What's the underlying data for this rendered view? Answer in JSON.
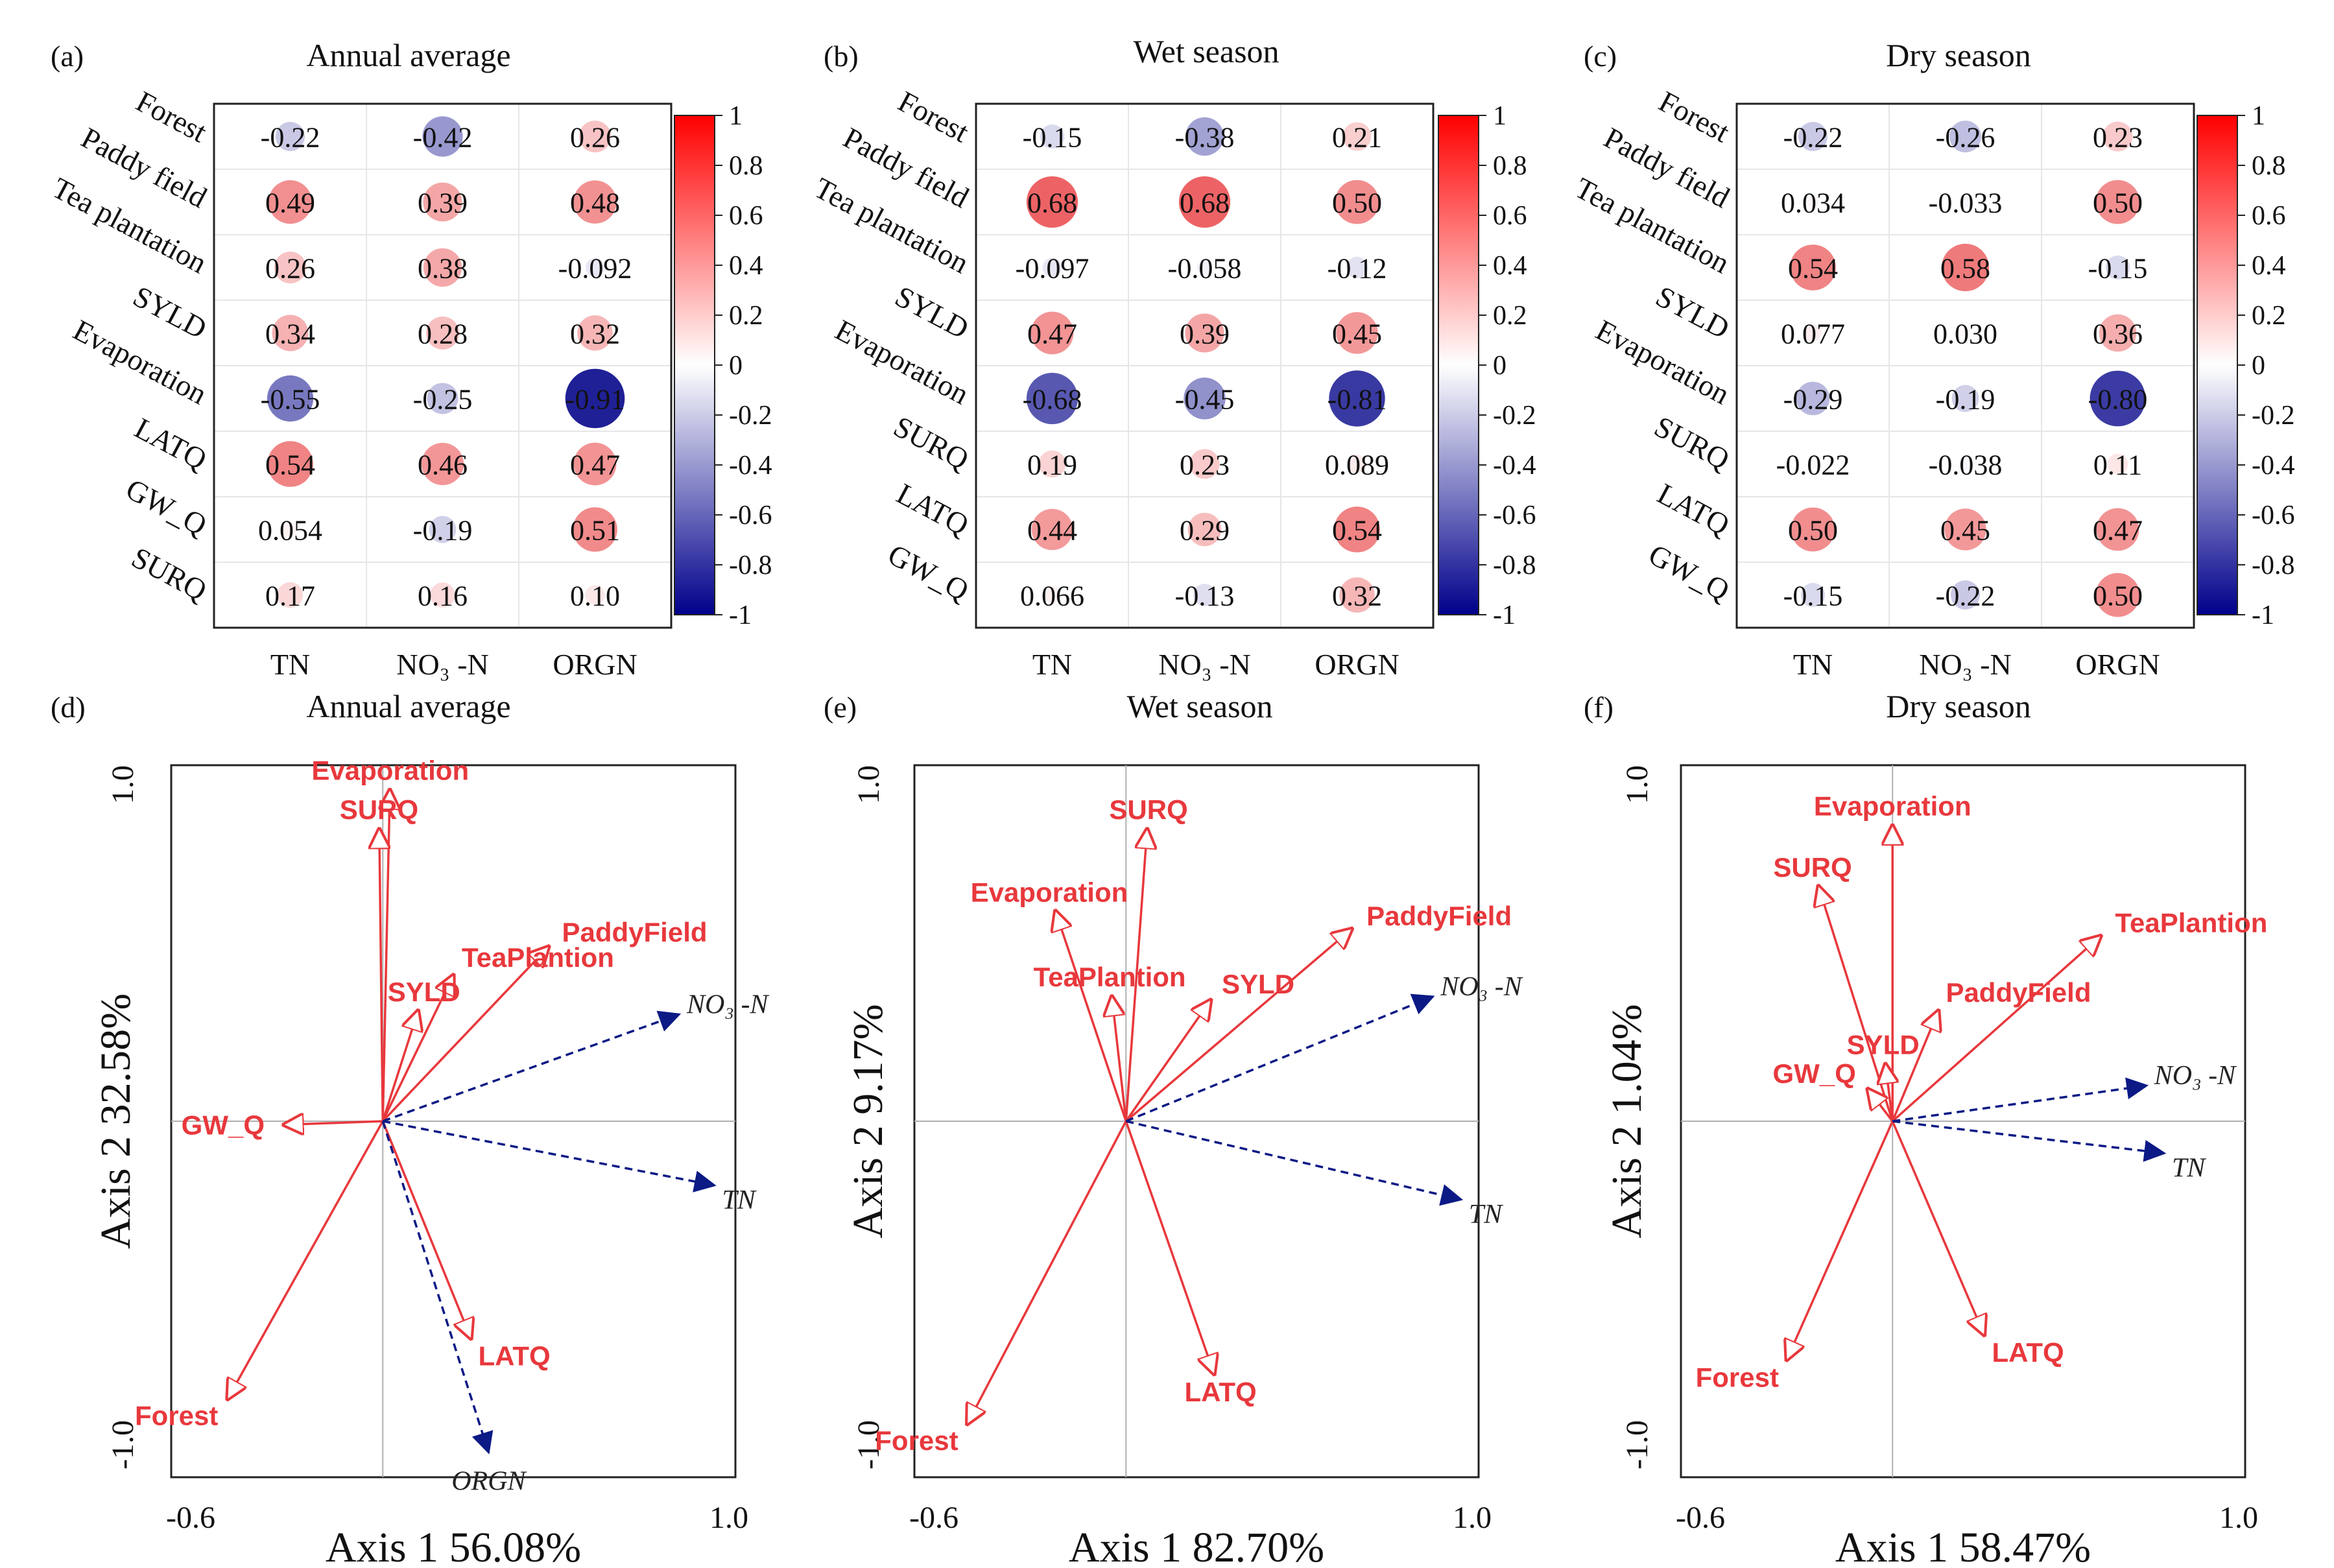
{
  "figure": {
    "corr_columns": [
      "TN",
      "NO₃ -N",
      "ORGN"
    ],
    "colorbar_ticks": [
      "1",
      "0.8",
      "0.6",
      "0.4",
      "0.2",
      "0",
      "-0.2",
      "-0.4",
      "-0.6",
      "-0.8",
      "-1"
    ],
    "colorbar_values": [
      1,
      0.8,
      0.6,
      0.4,
      0.2,
      0,
      -0.2,
      -0.4,
      -0.6,
      -0.8,
      -1
    ],
    "colors": {
      "positive": "#e41a1c",
      "negative": "#0a0a8c",
      "env_arrow": "#e8383c",
      "species_arrow": "#0b1a85"
    }
  },
  "chart_data": [
    {
      "type": "heatmap",
      "panel": "(a)",
      "title": "Annual average",
      "rows": [
        "Forest",
        "Paddy field",
        "Tea plantation",
        "SYLD",
        "Evaporation",
        "LATQ",
        "GW_Q",
        "SURQ"
      ],
      "columns": [
        "TN",
        "NO₃ -N",
        "ORGN"
      ],
      "values": [
        [
          -0.22,
          -0.42,
          0.26
        ],
        [
          0.49,
          0.39,
          0.48
        ],
        [
          0.26,
          0.38,
          -0.092
        ],
        [
          0.34,
          0.28,
          0.32
        ],
        [
          -0.55,
          -0.25,
          -0.91
        ],
        [
          0.54,
          0.46,
          0.47
        ],
        [
          0.054,
          -0.19,
          0.51
        ],
        [
          0.17,
          0.16,
          0.1
        ]
      ],
      "labels": [
        [
          "-0.22",
          "-0.42",
          "0.26"
        ],
        [
          "0.49",
          "0.39",
          "0.48"
        ],
        [
          "0.26",
          "0.38",
          "-0.092"
        ],
        [
          "0.34",
          "0.28",
          "0.32"
        ],
        [
          "-0.55",
          "-0.25",
          "-0.91"
        ],
        [
          "0.54",
          "0.46",
          "0.47"
        ],
        [
          "0.054",
          "-0.19",
          "0.51"
        ],
        [
          "0.17",
          "0.16",
          "0.10"
        ]
      ],
      "range": [
        -1,
        1
      ]
    },
    {
      "type": "heatmap",
      "panel": "(b)",
      "title": "Wet season",
      "rows": [
        "Forest",
        "Paddy field",
        "Tea plantation",
        "SYLD",
        "Evaporation",
        "SURQ",
        "LATQ",
        "GW_Q"
      ],
      "columns": [
        "TN",
        "NO₃ -N",
        "ORGN"
      ],
      "values": [
        [
          -0.15,
          -0.38,
          0.21
        ],
        [
          0.68,
          0.68,
          0.5
        ],
        [
          -0.097,
          -0.058,
          -0.12
        ],
        [
          0.47,
          0.39,
          0.45
        ],
        [
          -0.68,
          -0.45,
          -0.81
        ],
        [
          0.19,
          0.23,
          0.089
        ],
        [
          0.44,
          0.29,
          0.54
        ],
        [
          0.066,
          -0.13,
          0.32
        ]
      ],
      "labels": [
        [
          "-0.15",
          "-0.38",
          "0.21"
        ],
        [
          "0.68",
          "0.68",
          "0.50"
        ],
        [
          "-0.097",
          "-0.058",
          "-0.12"
        ],
        [
          "0.47",
          "0.39",
          "0.45"
        ],
        [
          "-0.68",
          "-0.45",
          "-0.81"
        ],
        [
          "0.19",
          "0.23",
          "0.089"
        ],
        [
          "0.44",
          "0.29",
          "0.54"
        ],
        [
          "0.066",
          "-0.13",
          "0.32"
        ]
      ],
      "range": [
        -1,
        1
      ]
    },
    {
      "type": "heatmap",
      "panel": "(c)",
      "title": "Dry season",
      "rows": [
        "Forest",
        "Paddy field",
        "Tea plantation",
        "SYLD",
        "Evaporation",
        "SURQ",
        "LATQ",
        "GW_Q"
      ],
      "columns": [
        "TN",
        "NO₃ -N",
        "ORGN"
      ],
      "values": [
        [
          -0.22,
          -0.26,
          0.23
        ],
        [
          0.034,
          -0.033,
          0.5
        ],
        [
          0.54,
          0.58,
          -0.15
        ],
        [
          0.077,
          0.03,
          0.36
        ],
        [
          -0.29,
          -0.19,
          -0.8
        ],
        [
          -0.022,
          -0.038,
          0.11
        ],
        [
          0.5,
          0.45,
          0.47
        ],
        [
          -0.15,
          -0.22,
          0.5
        ]
      ],
      "labels": [
        [
          "-0.22",
          "-0.26",
          "0.23"
        ],
        [
          "0.034",
          "-0.033",
          "0.50"
        ],
        [
          "0.54",
          "0.58",
          "-0.15"
        ],
        [
          "0.077",
          "0.030",
          "0.36"
        ],
        [
          "-0.29",
          "-0.19",
          "-0.80"
        ],
        [
          "-0.022",
          "-0.038",
          "0.11"
        ],
        [
          "0.50",
          "0.45",
          "0.47"
        ],
        [
          "-0.15",
          "-0.22",
          "0.50"
        ]
      ],
      "range": [
        -1,
        1
      ]
    },
    {
      "type": "scatter",
      "subtype": "rda-biplot",
      "panel": "(d)",
      "title": "Annual average",
      "xlabel": "Axis 1  56.08%",
      "ylabel": "Axis 2  32.58%",
      "xlim": [
        -0.6,
        1.0
      ],
      "ylim": [
        -1.0,
        1.0
      ],
      "x_tick_labels": [
        "-0.6",
        "1.0"
      ],
      "y_tick_labels": [
        "1.0",
        "-1.0"
      ],
      "env_vectors": [
        {
          "name": "Evaporation",
          "x": 0.02,
          "y": 0.93
        },
        {
          "name": "SURQ",
          "x": -0.01,
          "y": 0.82
        },
        {
          "name": "PaddyField",
          "x": 0.47,
          "y": 0.49
        },
        {
          "name": "TeaPlantion",
          "x": 0.2,
          "y": 0.41
        },
        {
          "name": "SYLD",
          "x": 0.1,
          "y": 0.31
        },
        {
          "name": "GW_Q",
          "x": -0.28,
          "y": -0.01
        },
        {
          "name": "LATQ",
          "x": 0.25,
          "y": -0.61
        },
        {
          "name": "Forest",
          "x": -0.44,
          "y": -0.78
        }
      ],
      "species_vectors": [
        {
          "name": "NO₃ -N",
          "x": 0.84,
          "y": 0.3
        },
        {
          "name": "TN",
          "x": 0.94,
          "y": -0.18
        },
        {
          "name": "ORGN",
          "x": 0.3,
          "y": -0.93
        }
      ]
    },
    {
      "type": "scatter",
      "subtype": "rda-biplot",
      "panel": "(e)",
      "title": "Wet season",
      "xlabel": "Axis 1  82.70%",
      "ylabel": "Axis 2  9.17%",
      "xlim": [
        -0.6,
        1.0
      ],
      "ylim": [
        -1.0,
        1.0
      ],
      "x_tick_labels": [
        "-0.6",
        "1.0"
      ],
      "y_tick_labels": [
        "1.0",
        "-1.0"
      ],
      "env_vectors": [
        {
          "name": "SURQ",
          "x": 0.06,
          "y": 0.82
        },
        {
          "name": "Evaporation",
          "x": -0.2,
          "y": 0.59
        },
        {
          "name": "PaddyField",
          "x": 0.64,
          "y": 0.54
        },
        {
          "name": "TeaPlantion",
          "x": -0.04,
          "y": 0.35
        },
        {
          "name": "SYLD",
          "x": 0.24,
          "y": 0.34
        },
        {
          "name": "LATQ",
          "x": 0.25,
          "y": -0.71
        },
        {
          "name": "Forest",
          "x": -0.45,
          "y": -0.85
        }
      ],
      "species_vectors": [
        {
          "name": "NO₃ -N",
          "x": 0.87,
          "y": 0.35
        },
        {
          "name": "TN",
          "x": 0.95,
          "y": -0.22
        }
      ]
    },
    {
      "type": "scatter",
      "subtype": "rda-biplot",
      "panel": "(f)",
      "title": "Dry season",
      "xlabel": "Axis 1  58.47%",
      "ylabel": "Axis 2  1.04%",
      "xlim": [
        -0.6,
        1.0
      ],
      "ylim": [
        -1.0,
        1.0
      ],
      "x_tick_labels": [
        "-0.6",
        "1.0"
      ],
      "y_tick_labels": [
        "1.0",
        "-1.0"
      ],
      "env_vectors": [
        {
          "name": "Evaporation",
          "x": 0.0,
          "y": 0.83
        },
        {
          "name": "SURQ",
          "x": -0.21,
          "y": 0.66
        },
        {
          "name": "TeaPlantion",
          "x": 0.59,
          "y": 0.52
        },
        {
          "name": "PaddyField",
          "x": 0.13,
          "y": 0.31
        },
        {
          "name": "SYLD",
          "x": -0.02,
          "y": 0.16
        },
        {
          "name": "GW_Q",
          "x": -0.07,
          "y": 0.09
        },
        {
          "name": "LATQ",
          "x": 0.26,
          "y": -0.6
        },
        {
          "name": "Forest",
          "x": -0.3,
          "y": -0.67
        }
      ],
      "species_vectors": [
        {
          "name": "NO₃ -N",
          "x": 0.72,
          "y": 0.1
        },
        {
          "name": "TN",
          "x": 0.77,
          "y": -0.09
        }
      ]
    }
  ]
}
